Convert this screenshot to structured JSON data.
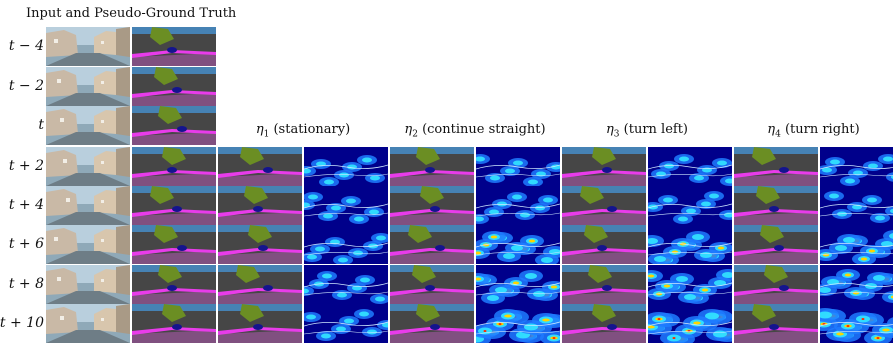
{
  "figure": {
    "section_title": "Input and Pseudo-Ground Truth",
    "input_rows": [
      "t − 4",
      "t − 2",
      "t"
    ],
    "future_rows": [
      "t + 2",
      "t + 4",
      "t + 6",
      "t + 8",
      "t + 10"
    ],
    "hypotheses": [
      {
        "symbol": "η",
        "sub": "1",
        "text": "(stationary)"
      },
      {
        "symbol": "η",
        "sub": "2",
        "text": "(continue straight)"
      },
      {
        "symbol": "η",
        "sub": "3",
        "text": "(turn left)"
      },
      {
        "symbol": "η",
        "sub": "4",
        "text": "(turn right)"
      }
    ]
  }
}
